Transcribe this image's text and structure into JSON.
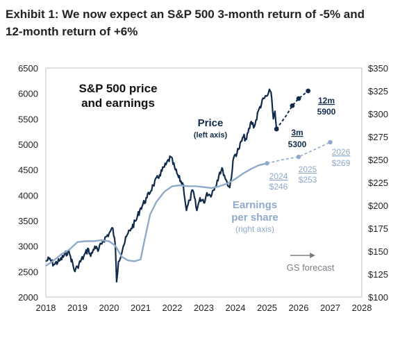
{
  "title": {
    "line1": "Exhibit 1: We now expect an S&P 500 3-month return of -5% and",
    "line2": "12-month return of +6%"
  },
  "chart_data": {
    "type": "line",
    "title": "S&P 500 price and earnings",
    "title_lines": [
      "S&P 500 price",
      "and earnings"
    ],
    "x_ticks": [
      "2018",
      "2019",
      "2020",
      "2021",
      "2022",
      "2023",
      "2024",
      "2025",
      "2026",
      "2027",
      "2028"
    ],
    "xlim": [
      2018,
      2028
    ],
    "left_axis": {
      "ticks": [
        "6500",
        "6000",
        "5500",
        "5000",
        "4500",
        "4000",
        "3500",
        "3000",
        "2500",
        "2000"
      ],
      "ylim": [
        2000,
        6500
      ]
    },
    "right_axis": {
      "ticks": [
        "$350",
        "$325",
        "$300",
        "$275",
        "$250",
        "$225",
        "$200",
        "$175",
        "$150",
        "$125",
        "$100"
      ],
      "ylim": [
        100,
        350
      ]
    },
    "grid": false,
    "colors": {
      "price": "#0f2a4a",
      "earnings": "#8fa9c8",
      "forecast_arrow": "#7a7f86"
    },
    "series": [
      {
        "name": "Price",
        "axis": "left",
        "x": [
          2018.0,
          2018.1,
          2018.25,
          2018.45,
          2018.7,
          2018.78,
          2018.92,
          2019.0,
          2019.2,
          2019.35,
          2019.42,
          2019.55,
          2019.65,
          2019.8,
          2020.0,
          2020.12,
          2020.2,
          2020.24,
          2020.3,
          2020.45,
          2020.6,
          2020.7,
          2020.85,
          2021.0,
          2021.2,
          2021.4,
          2021.6,
          2021.8,
          2021.95,
          2022.1,
          2022.2,
          2022.35,
          2022.45,
          2022.55,
          2022.65,
          2022.78,
          2022.88,
          2023.0,
          2023.1,
          2023.2,
          2023.35,
          2023.5,
          2023.6,
          2023.7,
          2023.82,
          2023.95,
          2024.1,
          2024.25,
          2024.35,
          2024.5,
          2024.6,
          2024.75,
          2024.9,
          2025.0,
          2025.1,
          2025.15,
          2025.2,
          2025.25,
          2025.3
        ],
        "values": [
          2700,
          2750,
          2640,
          2720,
          2900,
          2800,
          2500,
          2600,
          2800,
          2950,
          2800,
          3000,
          2900,
          3100,
          3250,
          3350,
          3000,
          2300,
          2700,
          3000,
          3250,
          3350,
          3500,
          3750,
          3950,
          4200,
          4400,
          4600,
          4750,
          4500,
          4350,
          4200,
          3700,
          3900,
          4100,
          3700,
          3950,
          3850,
          4050,
          4000,
          4150,
          4450,
          4500,
          4300,
          4150,
          4750,
          4900,
          5150,
          5100,
          5450,
          5350,
          5700,
          5900,
          5950,
          6050,
          5900,
          5500,
          5650,
          5300
        ]
      },
      {
        "name": "Earnings per share",
        "axis": "right",
        "x": [
          2018.0,
          2018.25,
          2018.5,
          2018.75,
          2019.0,
          2019.25,
          2019.5,
          2019.75,
          2020.0,
          2020.2,
          2020.4,
          2020.6,
          2020.8,
          2021.0,
          2021.1,
          2021.3,
          2021.5,
          2021.75,
          2022.0,
          2022.25,
          2022.5,
          2022.75,
          2023.0,
          2023.25,
          2023.5,
          2023.75,
          2024.0,
          2024.25,
          2024.5,
          2024.75,
          2025.0
        ],
        "values": [
          134,
          140,
          147,
          152,
          160,
          161,
          161,
          162,
          161,
          156,
          144,
          140,
          139,
          141,
          158,
          190,
          204,
          215,
          221,
          222,
          221,
          221,
          220,
          219,
          221,
          224,
          229,
          235,
          240,
          244,
          246
        ]
      },
      {
        "name": "Price forecast",
        "axis": "left",
        "x": [
          2025.3,
          2025.6,
          2025.8,
          2026.0,
          2026.3
        ],
        "values": [
          5300,
          5560,
          5760,
          5900,
          6050
        ]
      },
      {
        "name": "EPS forecast",
        "axis": "right",
        "x": [
          2025.0,
          2025.5,
          2026.0,
          2026.5,
          2027.0
        ],
        "values": [
          246,
          250,
          253,
          261,
          269
        ]
      }
    ],
    "annotations": {
      "price_label": "Price",
      "price_sub": "(left axis)",
      "eps_label_1": "Earnings",
      "eps_label_2": "per share",
      "eps_sub": "(right axis)",
      "fc_3m_label": "3m",
      "fc_3m_value": "5300",
      "fc_12m_label": "12m",
      "fc_12m_value": "5900",
      "eps_2024_year": "2024",
      "eps_2024_value": "$246",
      "eps_2025_year": "2025",
      "eps_2025_value": "$253",
      "eps_2026_year": "2026",
      "eps_2026_value": "$269",
      "gs_forecast": "GS forecast"
    }
  }
}
